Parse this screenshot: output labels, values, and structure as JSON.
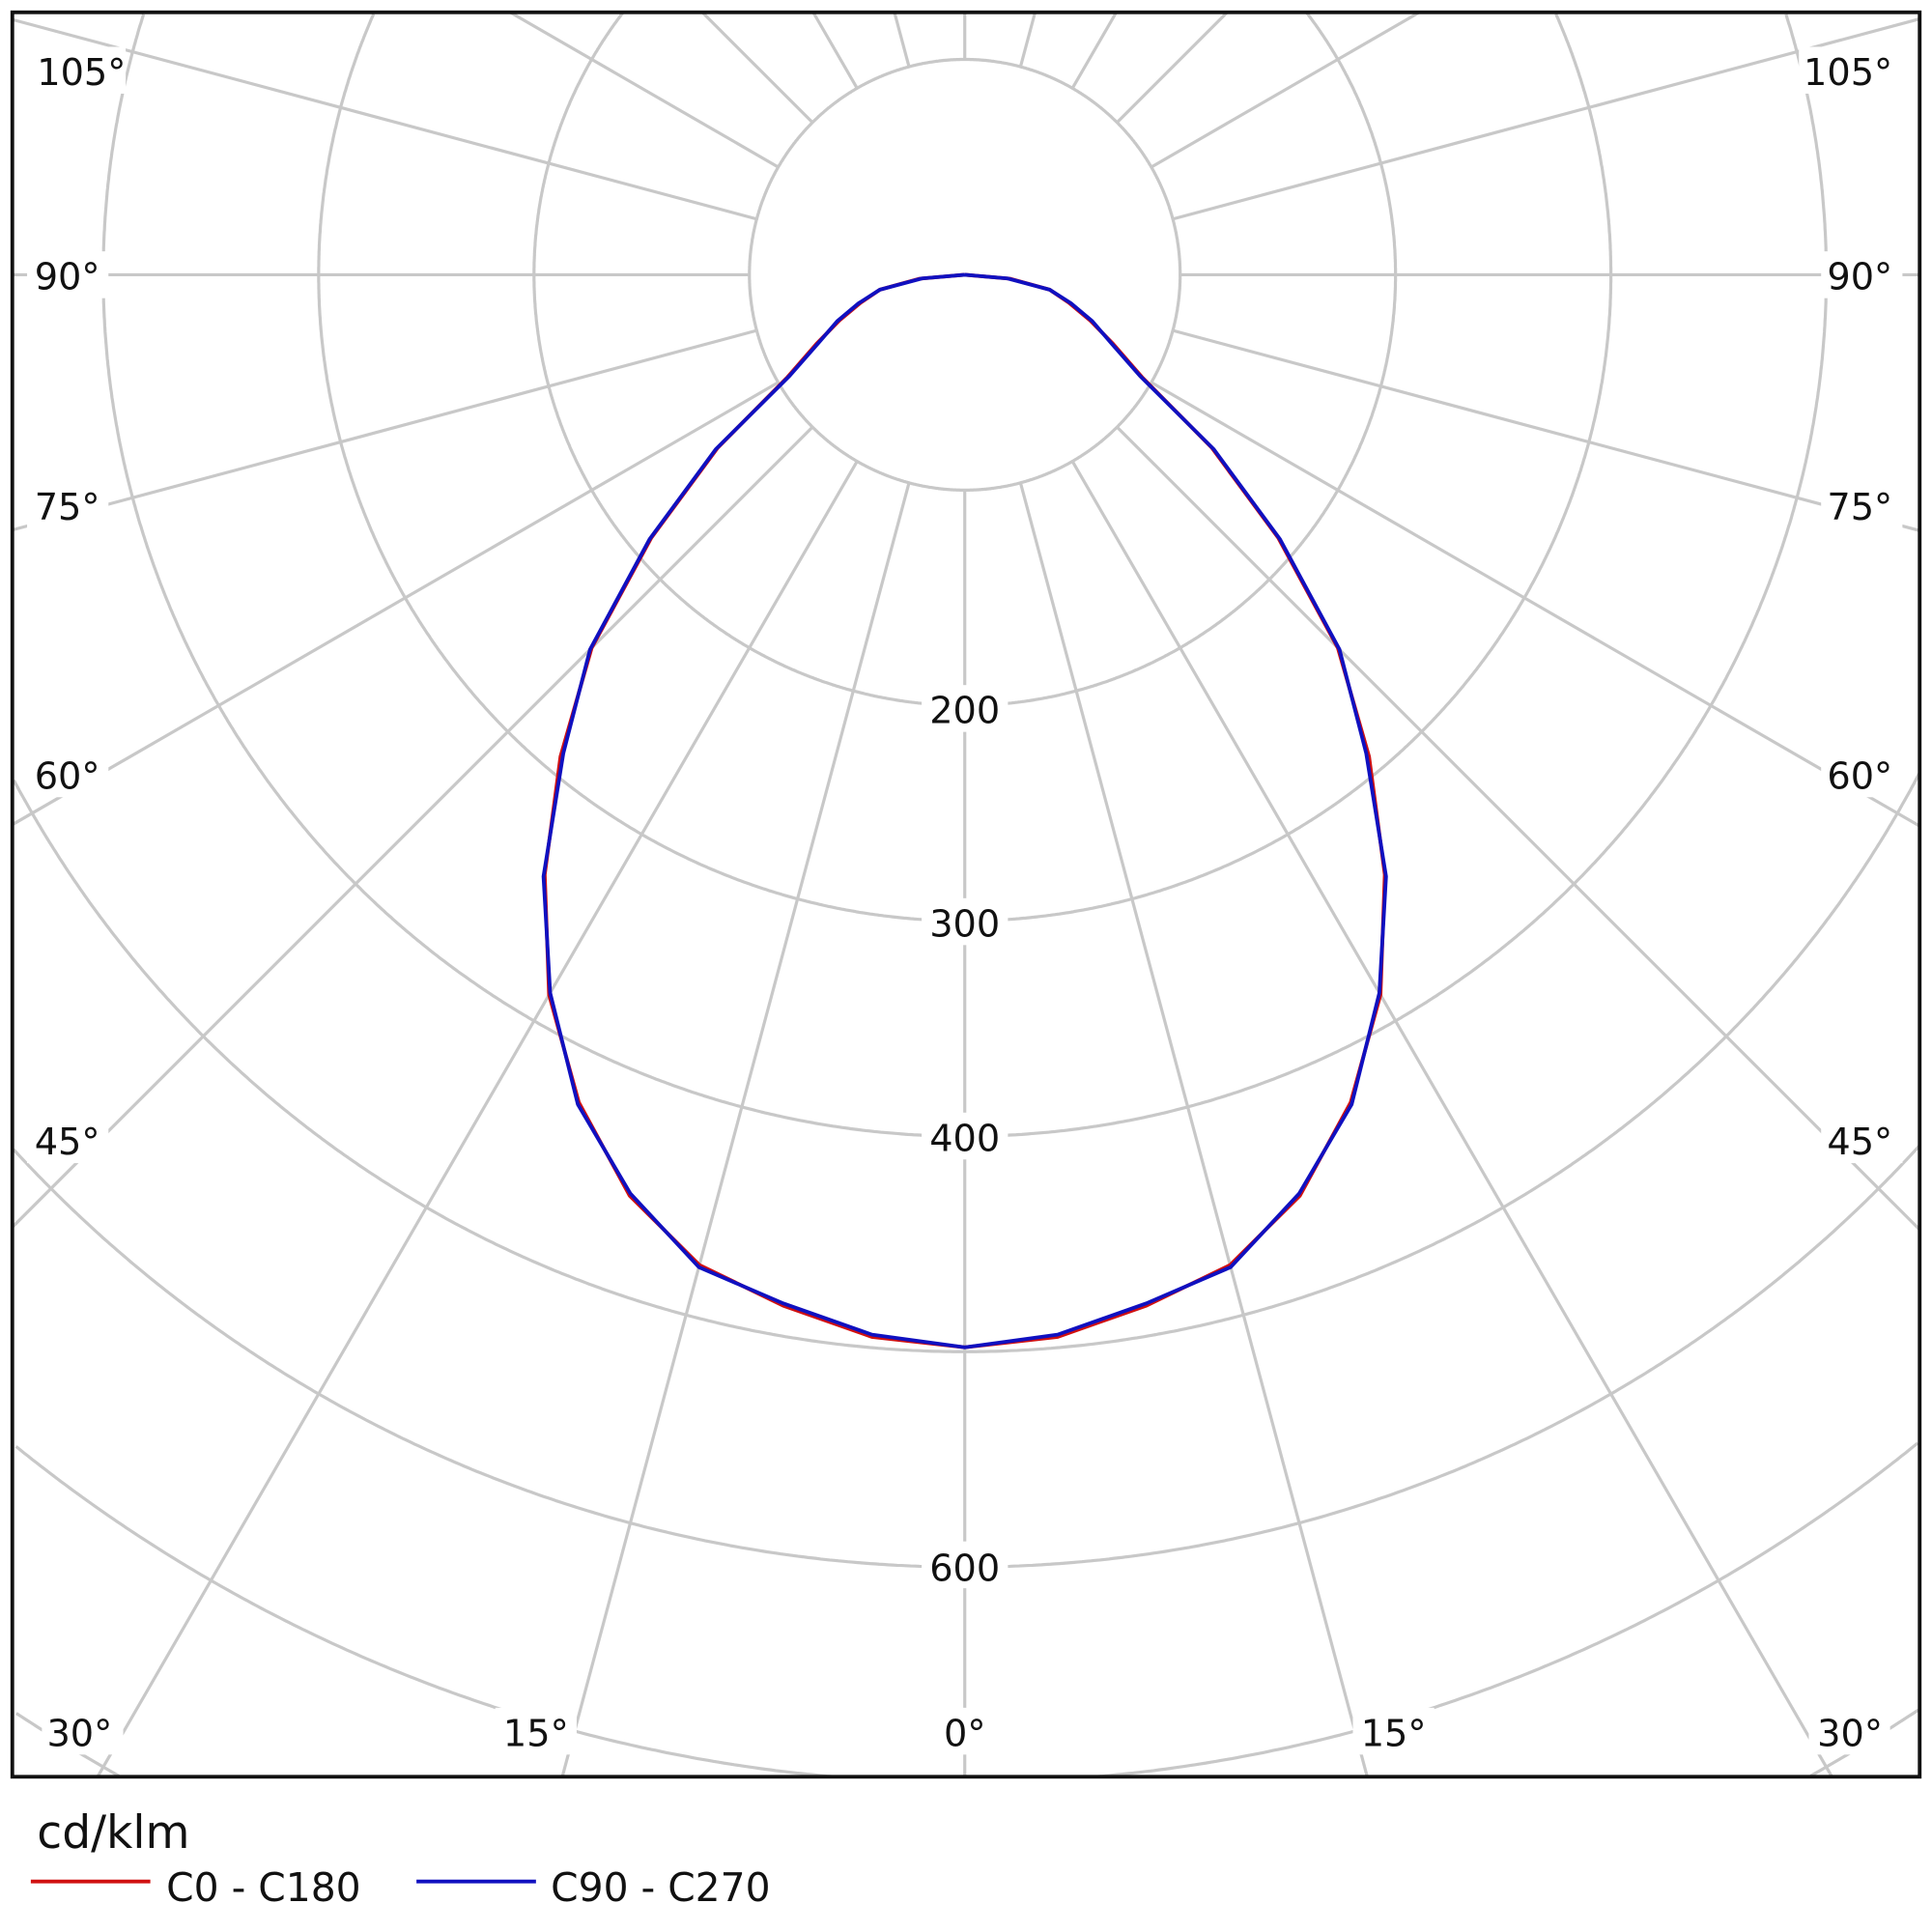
{
  "chart_data": {
    "type": "polar-line",
    "unit_label": "cd/klm",
    "radial_tick_labels": [
      "200",
      "300",
      "400",
      "600"
    ],
    "radial_range": [
      0,
      700
    ],
    "radial_step": 100,
    "angle_step_deg": 15,
    "angle_labels": {
      "left": [
        "105°",
        "90°",
        "75°",
        "60°",
        "45°",
        "30°"
      ],
      "bottom": [
        "15°",
        "0°",
        "15°"
      ],
      "right": [
        "105°",
        "90°",
        "75°",
        "60°",
        "45°",
        "30°"
      ]
    },
    "grid": true,
    "legend_placement": "bottom-left",
    "angles_deg": [
      0,
      5,
      10,
      15,
      20,
      25,
      30,
      35,
      40,
      45,
      50,
      55,
      60,
      65,
      70,
      75,
      80,
      85,
      90
    ],
    "series": [
      {
        "name": "C0 - C180",
        "color": "#d01010",
        "values": [
          498,
          495,
          486,
          476,
          455,
          424,
          386,
          340,
          292,
          245,
          190,
          140,
          95,
          76,
          62,
          50,
          40,
          21,
          0
        ]
      },
      {
        "name": "C90 - C270",
        "color": "#1010c0",
        "values": [
          498,
          494,
          485,
          477,
          454,
          425,
          385,
          341,
          290,
          246,
          191,
          141,
          94,
          75,
          63,
          51,
          40,
          20,
          0
        ]
      }
    ]
  }
}
